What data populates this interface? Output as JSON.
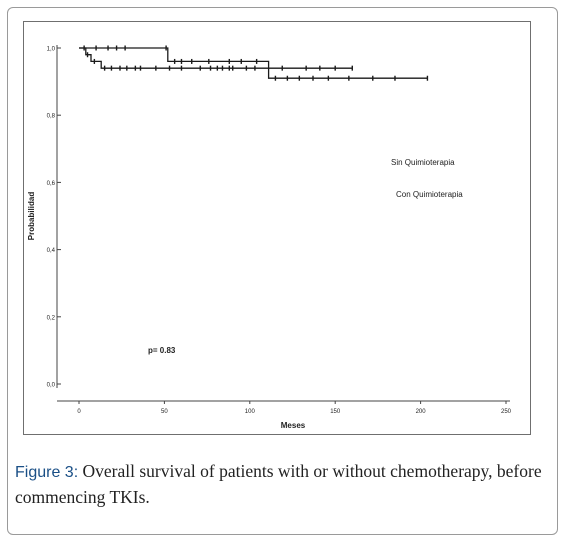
{
  "caption": {
    "label": "Figure 3:",
    "text": " Overall survival of patients with or without chemotherapy, before commencing TKIs."
  },
  "chart_data": {
    "type": "line",
    "title": "",
    "xlabel": "Meses",
    "ylabel": "Probabilidad",
    "xlim": [
      0,
      250
    ],
    "ylim": [
      0,
      1.0
    ],
    "x_ticks": [
      "0",
      "50",
      "100",
      "150",
      "200",
      "250"
    ],
    "y_ticks": [
      "0,0",
      "0,2",
      "0,4",
      "0,6",
      "0,8",
      "1,0"
    ],
    "legend": [
      "Sin Quimioterapia",
      "Con Quimioterapia"
    ],
    "annotation": "p= 0.83",
    "grid": false,
    "series": [
      {
        "name": "Sin Quimioterapia",
        "steps": [
          [
            0,
            1.0
          ],
          [
            52,
            1.0
          ],
          [
            52,
            0.96
          ],
          [
            111,
            0.96
          ],
          [
            111,
            0.91
          ],
          [
            204,
            0.91
          ]
        ],
        "censored": [
          3,
          10,
          17,
          22,
          27,
          51,
          56,
          60,
          66,
          76,
          88,
          95,
          104,
          115,
          122,
          129,
          137,
          146,
          158,
          172,
          185,
          204
        ]
      },
      {
        "name": "Con Quimioterapia",
        "steps": [
          [
            0,
            1.0
          ],
          [
            4,
            1.0
          ],
          [
            4,
            0.98
          ],
          [
            7,
            0.98
          ],
          [
            7,
            0.96
          ],
          [
            13,
            0.96
          ],
          [
            13,
            0.94
          ],
          [
            160,
            0.94
          ]
        ],
        "censored": [
          5,
          9,
          15,
          19,
          24,
          28,
          33,
          36,
          45,
          53,
          60,
          71,
          77,
          81,
          84,
          88,
          90,
          98,
          103,
          119,
          133,
          141,
          150,
          160
        ]
      }
    ]
  }
}
